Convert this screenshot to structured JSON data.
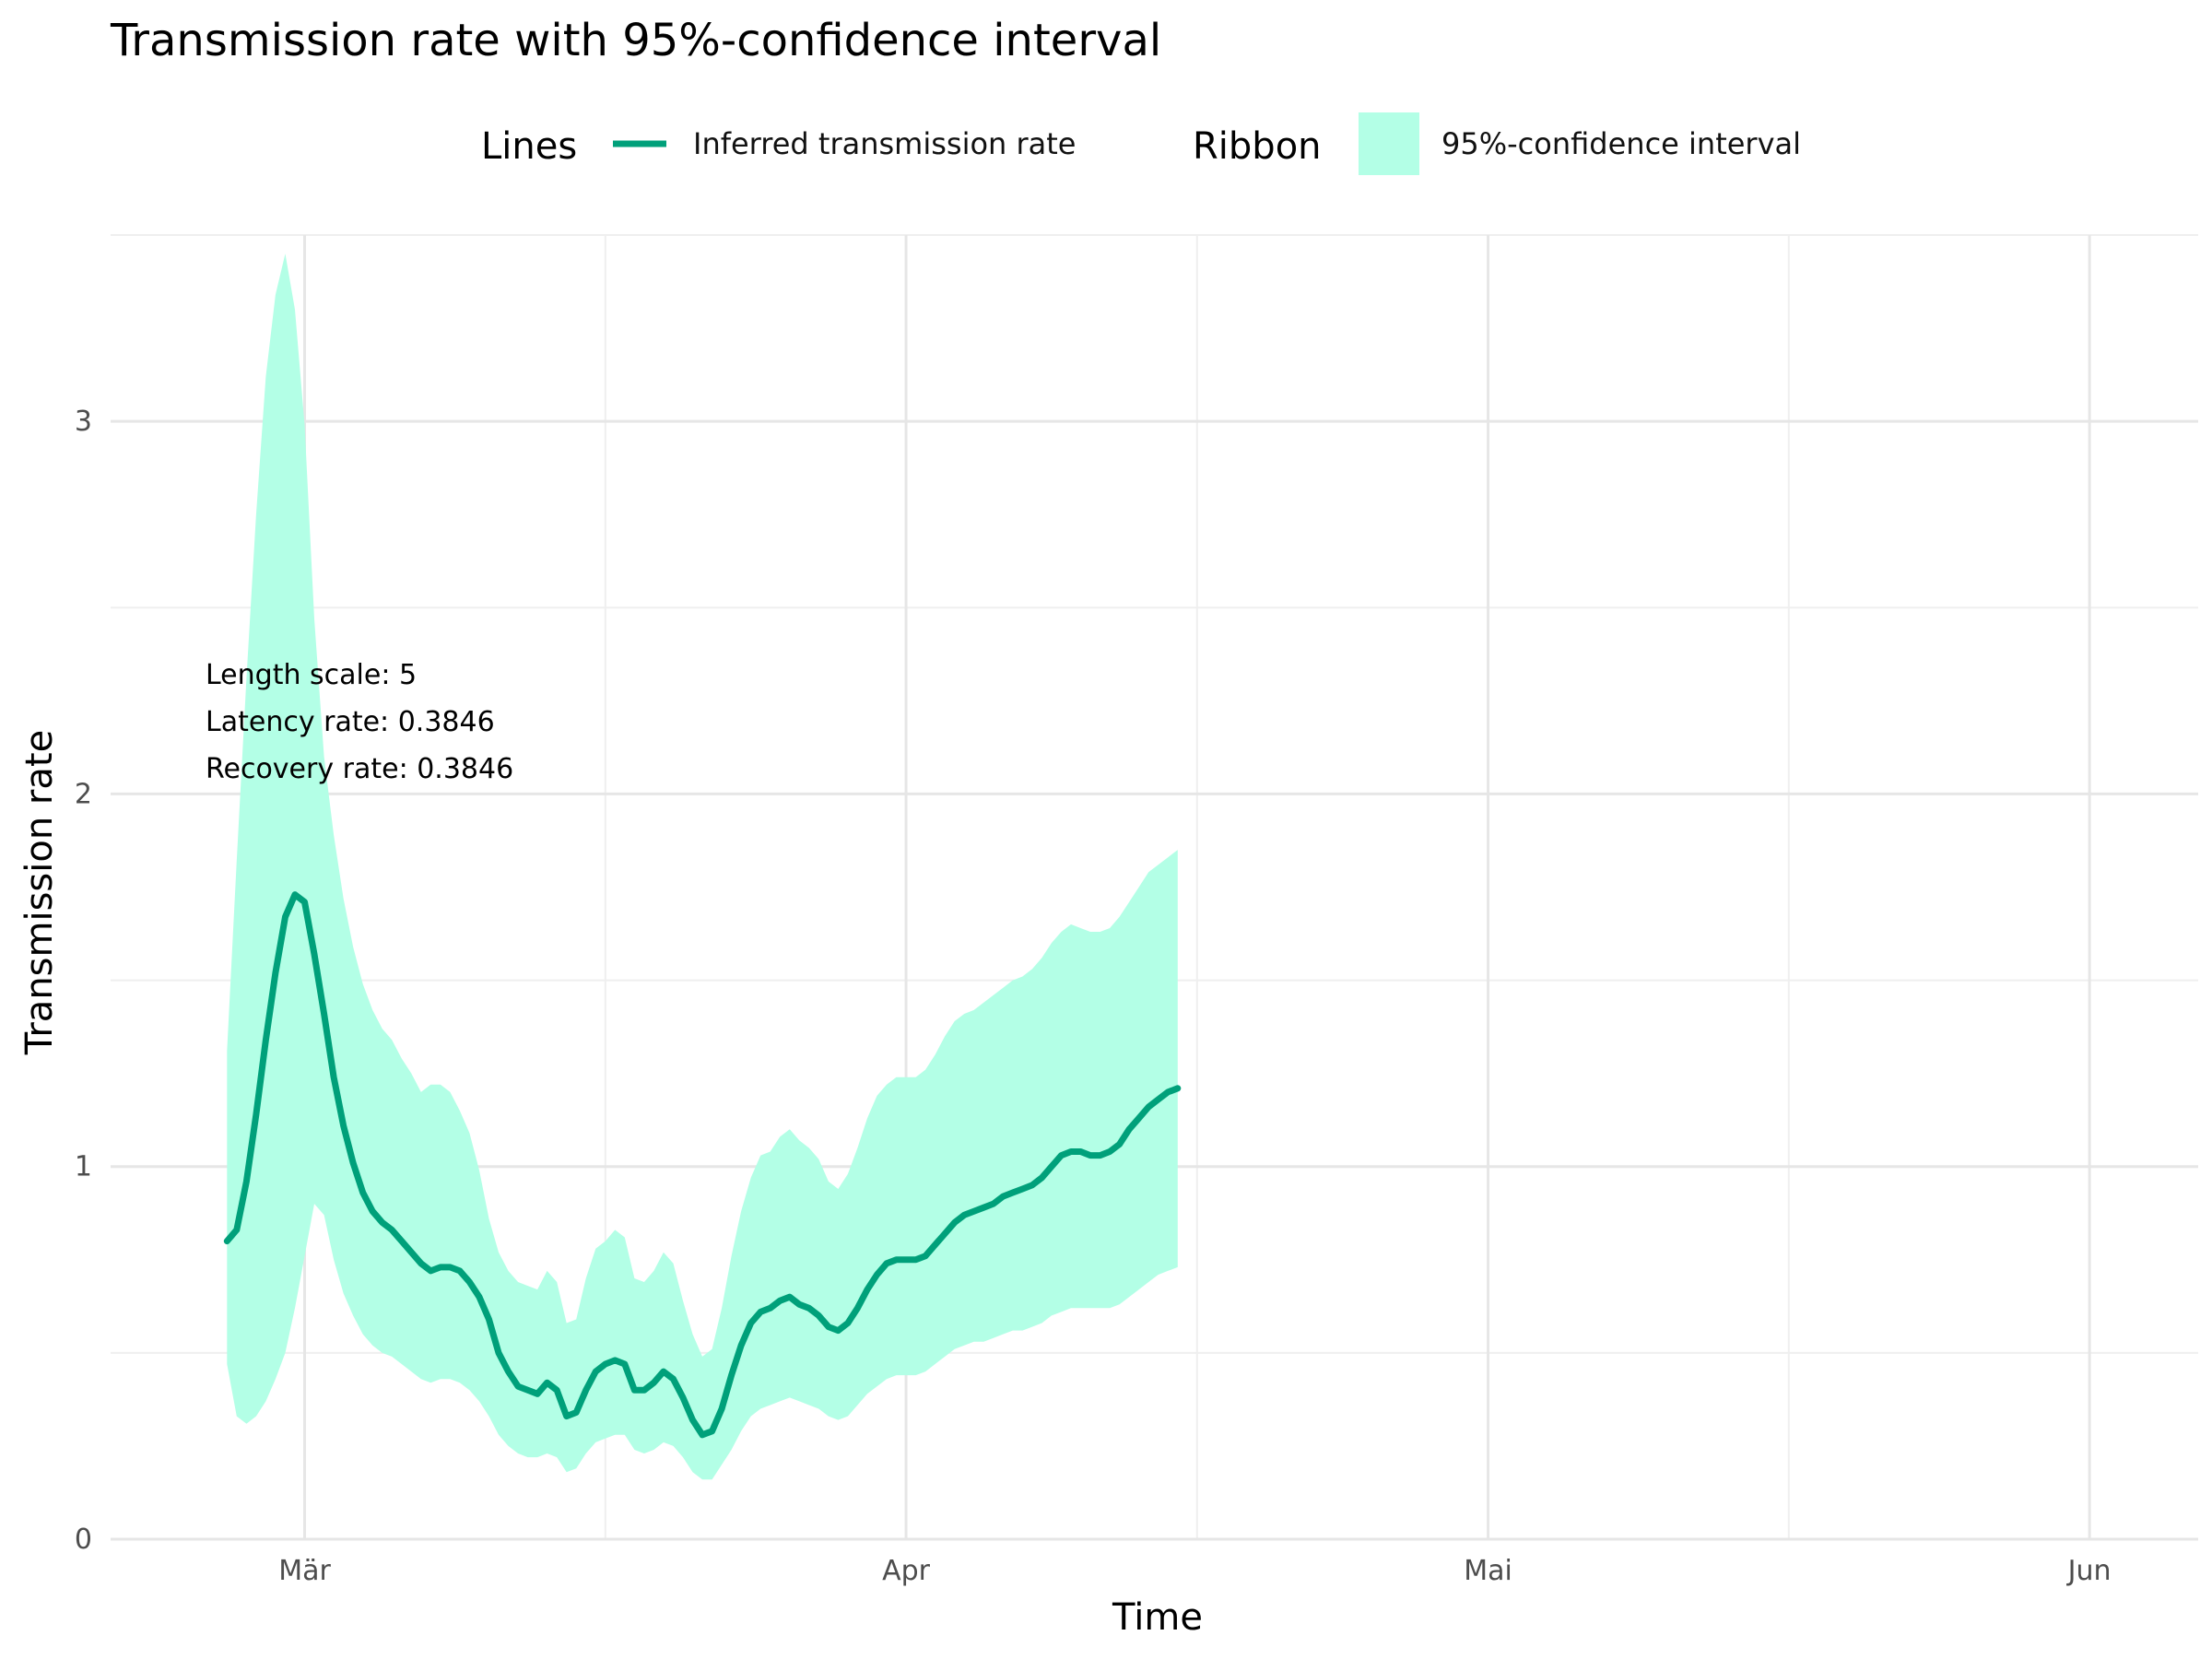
{
  "chart_data": {
    "type": "line",
    "title": "Transmission rate with 95%-confidence interval",
    "xlabel": "Time",
    "ylabel": "Transmission rate",
    "ylim": [
      0,
      3.5
    ],
    "yticks": [
      0,
      1,
      2,
      3
    ],
    "xlim_day_of_year": [
      51,
      158.6
    ],
    "xticks": [
      {
        "label": "Mär",
        "day": 61
      },
      {
        "label": "Apr",
        "day": 92
      },
      {
        "label": "Mai",
        "day": 122
      },
      {
        "label": "Jun",
        "day": 153
      }
    ],
    "grid": true,
    "legend": {
      "position": "top",
      "groups": [
        {
          "title": "Lines",
          "entries": [
            {
              "label": "Inferred transmission rate",
              "color": "#00a07a",
              "kind": "line"
            }
          ]
        },
        {
          "title": "Ribbon",
          "entries": [
            {
              "label": "95%-confidence interval",
              "color": "#b3ffe6",
              "kind": "fill"
            }
          ]
        }
      ]
    },
    "annotations": [
      "Length scale: 5",
      "Latency rate: 0.3846",
      "Recovery rate: 0.3846"
    ],
    "series": [
      {
        "name": "Inferred transmission rate",
        "color": "#00a07a",
        "values": [
          0.8,
          0.83,
          0.96,
          1.14,
          1.34,
          1.52,
          1.67,
          1.73,
          1.71,
          1.57,
          1.41,
          1.24,
          1.11,
          1.01,
          0.93,
          0.88,
          0.85,
          0.83,
          0.8,
          0.77,
          0.74,
          0.72,
          0.73,
          0.73,
          0.72,
          0.69,
          0.65,
          0.59,
          0.5,
          0.45,
          0.41,
          0.4,
          0.39,
          0.42,
          0.4,
          0.33,
          0.34,
          0.4,
          0.45,
          0.47,
          0.48,
          0.47,
          0.4,
          0.4,
          0.42,
          0.45,
          0.43,
          0.38,
          0.32,
          0.28,
          0.29,
          0.35,
          0.44,
          0.52,
          0.58,
          0.61,
          0.62,
          0.64,
          0.65,
          0.63,
          0.62,
          0.6,
          0.57,
          0.56,
          0.58,
          0.62,
          0.67,
          0.71,
          0.74,
          0.75,
          0.75,
          0.75,
          0.76,
          0.79,
          0.82,
          0.85,
          0.87,
          0.88,
          0.89,
          0.9,
          0.92,
          0.93,
          0.94,
          0.95,
          0.97,
          1.0,
          1.03,
          1.04,
          1.04,
          1.03,
          1.03,
          1.04,
          1.06,
          1.1,
          1.13,
          1.16,
          1.18,
          1.2,
          1.21
        ]
      }
    ],
    "ribbon": {
      "name": "95%-confidence interval",
      "color": "#b3ffe6",
      "lower": [
        0.47,
        0.33,
        0.31,
        0.33,
        0.37,
        0.43,
        0.5,
        0.62,
        0.76,
        0.9,
        0.87,
        0.75,
        0.66,
        0.6,
        0.55,
        0.52,
        0.5,
        0.49,
        0.47,
        0.45,
        0.43,
        0.42,
        0.43,
        0.43,
        0.42,
        0.4,
        0.37,
        0.33,
        0.28,
        0.25,
        0.23,
        0.22,
        0.22,
        0.23,
        0.22,
        0.18,
        0.19,
        0.23,
        0.26,
        0.27,
        0.28,
        0.28,
        0.24,
        0.23,
        0.24,
        0.26,
        0.25,
        0.22,
        0.18,
        0.16,
        0.16,
        0.2,
        0.24,
        0.29,
        0.33,
        0.35,
        0.36,
        0.37,
        0.38,
        0.37,
        0.36,
        0.35,
        0.33,
        0.32,
        0.33,
        0.36,
        0.39,
        0.41,
        0.43,
        0.44,
        0.44,
        0.44,
        0.45,
        0.47,
        0.49,
        0.51,
        0.52,
        0.53,
        0.53,
        0.54,
        0.55,
        0.56,
        0.56,
        0.57,
        0.58,
        0.6,
        0.61,
        0.62,
        0.62,
        0.62,
        0.62,
        0.62,
        0.63,
        0.65,
        0.67,
        0.69,
        0.71,
        0.72,
        0.73
      ],
      "upper": [
        1.31,
        1.82,
        2.31,
        2.75,
        3.12,
        3.34,
        3.45,
        3.3,
        2.99,
        2.47,
        2.1,
        1.89,
        1.72,
        1.59,
        1.49,
        1.42,
        1.37,
        1.34,
        1.29,
        1.25,
        1.2,
        1.22,
        1.22,
        1.2,
        1.15,
        1.09,
        0.99,
        0.86,
        0.77,
        0.72,
        0.69,
        0.68,
        0.67,
        0.72,
        0.69,
        0.58,
        0.59,
        0.7,
        0.78,
        0.8,
        0.83,
        0.81,
        0.7,
        0.69,
        0.72,
        0.77,
        0.74,
        0.64,
        0.55,
        0.49,
        0.51,
        0.62,
        0.76,
        0.88,
        0.97,
        1.03,
        1.04,
        1.08,
        1.1,
        1.07,
        1.05,
        1.02,
        0.96,
        0.94,
        0.98,
        1.05,
        1.13,
        1.19,
        1.22,
        1.24,
        1.24,
        1.24,
        1.26,
        1.3,
        1.35,
        1.39,
        1.41,
        1.42,
        1.44,
        1.46,
        1.48,
        1.5,
        1.51,
        1.53,
        1.56,
        1.6,
        1.63,
        1.65,
        1.64,
        1.63,
        1.63,
        1.64,
        1.67,
        1.71,
        1.75,
        1.79,
        1.81,
        1.83,
        1.85
      ]
    }
  }
}
